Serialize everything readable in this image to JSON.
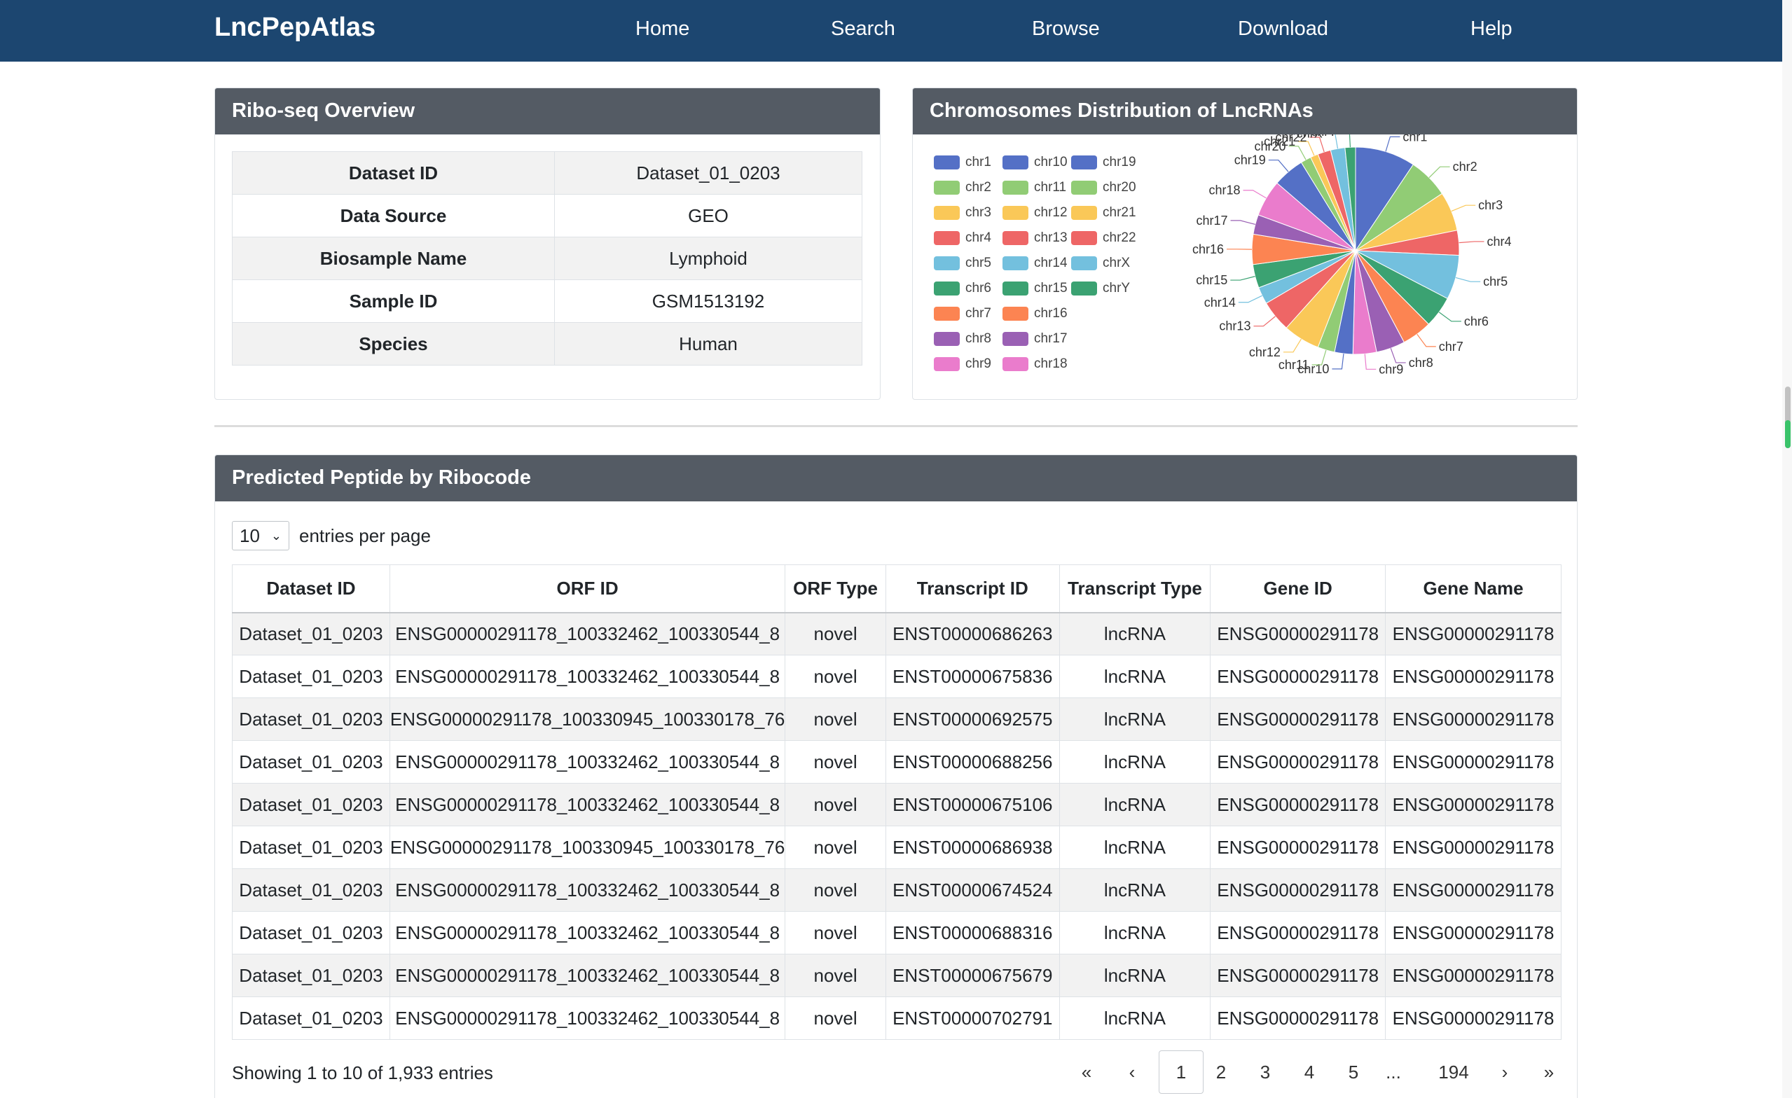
{
  "nav": {
    "brand": "LncPepAtlas",
    "items": [
      "Home",
      "Search",
      "Browse",
      "Download",
      "Help"
    ]
  },
  "overview": {
    "title": "Ribo-seq Overview",
    "rows": [
      {
        "key": "Dataset ID",
        "value": "Dataset_01_0203"
      },
      {
        "key": "Data Source",
        "value": "GEO"
      },
      {
        "key": "Biosample Name",
        "value": "Lymphoid"
      },
      {
        "key": "Sample ID",
        "value": "GSM1513192"
      },
      {
        "key": "Species",
        "value": "Human"
      }
    ]
  },
  "chromosomes": {
    "title": "Chromosomes Distribution of LncRNAs"
  },
  "chart_data": {
    "type": "pie",
    "title": "",
    "legend_position": "left",
    "categories": [
      "chr1",
      "chr2",
      "chr3",
      "chr4",
      "chr5",
      "chr6",
      "chr7",
      "chr8",
      "chr9",
      "chr10",
      "chr11",
      "chr12",
      "chr13",
      "chr14",
      "chr15",
      "chr16",
      "chr17",
      "chr18",
      "chr19",
      "chr20",
      "chr21",
      "chr22",
      "chrX",
      "chrY"
    ],
    "values": [
      9.2,
      6.2,
      6.0,
      3.8,
      6.8,
      4.8,
      4.6,
      4.4,
      3.6,
      2.8,
      2.6,
      5.6,
      4.8,
      2.6,
      3.6,
      4.6,
      3.0,
      5.6,
      4.8,
      1.6,
      1.2,
      2.0,
      2.2,
      1.6
    ],
    "colors": [
      "#5470c6",
      "#91cc75",
      "#fac858",
      "#ee6666",
      "#73c0de",
      "#3ba272",
      "#fc8452",
      "#9a60b4",
      "#ea7ccc",
      "#5470c6",
      "#91cc75",
      "#fac858",
      "#ee6666",
      "#73c0de",
      "#3ba272",
      "#fc8452",
      "#9a60b4",
      "#ea7ccc",
      "#5470c6",
      "#91cc75",
      "#fac858",
      "#ee6666",
      "#73c0de",
      "#3ba272"
    ]
  },
  "peptides": {
    "title": "Predicted Peptide by Ribocode",
    "page_size": "10",
    "entries_label": "entries per page",
    "columns": [
      "Dataset ID",
      "ORF ID",
      "ORF Type",
      "Transcript ID",
      "Transcript Type",
      "Gene ID",
      "Gene Name"
    ],
    "rows": [
      [
        "Dataset_01_0203",
        "ENSG00000291178_100332462_100330544_8",
        "novel",
        "ENST00000686263",
        "lncRNA",
        "ENSG00000291178",
        "ENSG00000291178"
      ],
      [
        "Dataset_01_0203",
        "ENSG00000291178_100332462_100330544_8",
        "novel",
        "ENST00000675836",
        "lncRNA",
        "ENSG00000291178",
        "ENSG00000291178"
      ],
      [
        "Dataset_01_0203",
        "ENSG00000291178_100330945_100330178_76",
        "novel",
        "ENST00000692575",
        "lncRNA",
        "ENSG00000291178",
        "ENSG00000291178"
      ],
      [
        "Dataset_01_0203",
        "ENSG00000291178_100332462_100330544_8",
        "novel",
        "ENST00000688256",
        "lncRNA",
        "ENSG00000291178",
        "ENSG00000291178"
      ],
      [
        "Dataset_01_0203",
        "ENSG00000291178_100332462_100330544_8",
        "novel",
        "ENST00000675106",
        "lncRNA",
        "ENSG00000291178",
        "ENSG00000291178"
      ],
      [
        "Dataset_01_0203",
        "ENSG00000291178_100330945_100330178_76",
        "novel",
        "ENST00000686938",
        "lncRNA",
        "ENSG00000291178",
        "ENSG00000291178"
      ],
      [
        "Dataset_01_0203",
        "ENSG00000291178_100332462_100330544_8",
        "novel",
        "ENST00000674524",
        "lncRNA",
        "ENSG00000291178",
        "ENSG00000291178"
      ],
      [
        "Dataset_01_0203",
        "ENSG00000291178_100332462_100330544_8",
        "novel",
        "ENST00000688316",
        "lncRNA",
        "ENSG00000291178",
        "ENSG00000291178"
      ],
      [
        "Dataset_01_0203",
        "ENSG00000291178_100332462_100330544_8",
        "novel",
        "ENST00000675679",
        "lncRNA",
        "ENSG00000291178",
        "ENSG00000291178"
      ],
      [
        "Dataset_01_0203",
        "ENSG00000291178_100332462_100330544_8",
        "novel",
        "ENST00000702791",
        "lncRNA",
        "ENSG00000291178",
        "ENSG00000291178"
      ]
    ],
    "showing": "Showing 1 to 10 of 1,933 entries",
    "pagination": [
      "«",
      "‹",
      "1",
      "2",
      "3",
      "4",
      "5",
      "...",
      "194",
      "›",
      "»"
    ],
    "active_page": "1"
  }
}
